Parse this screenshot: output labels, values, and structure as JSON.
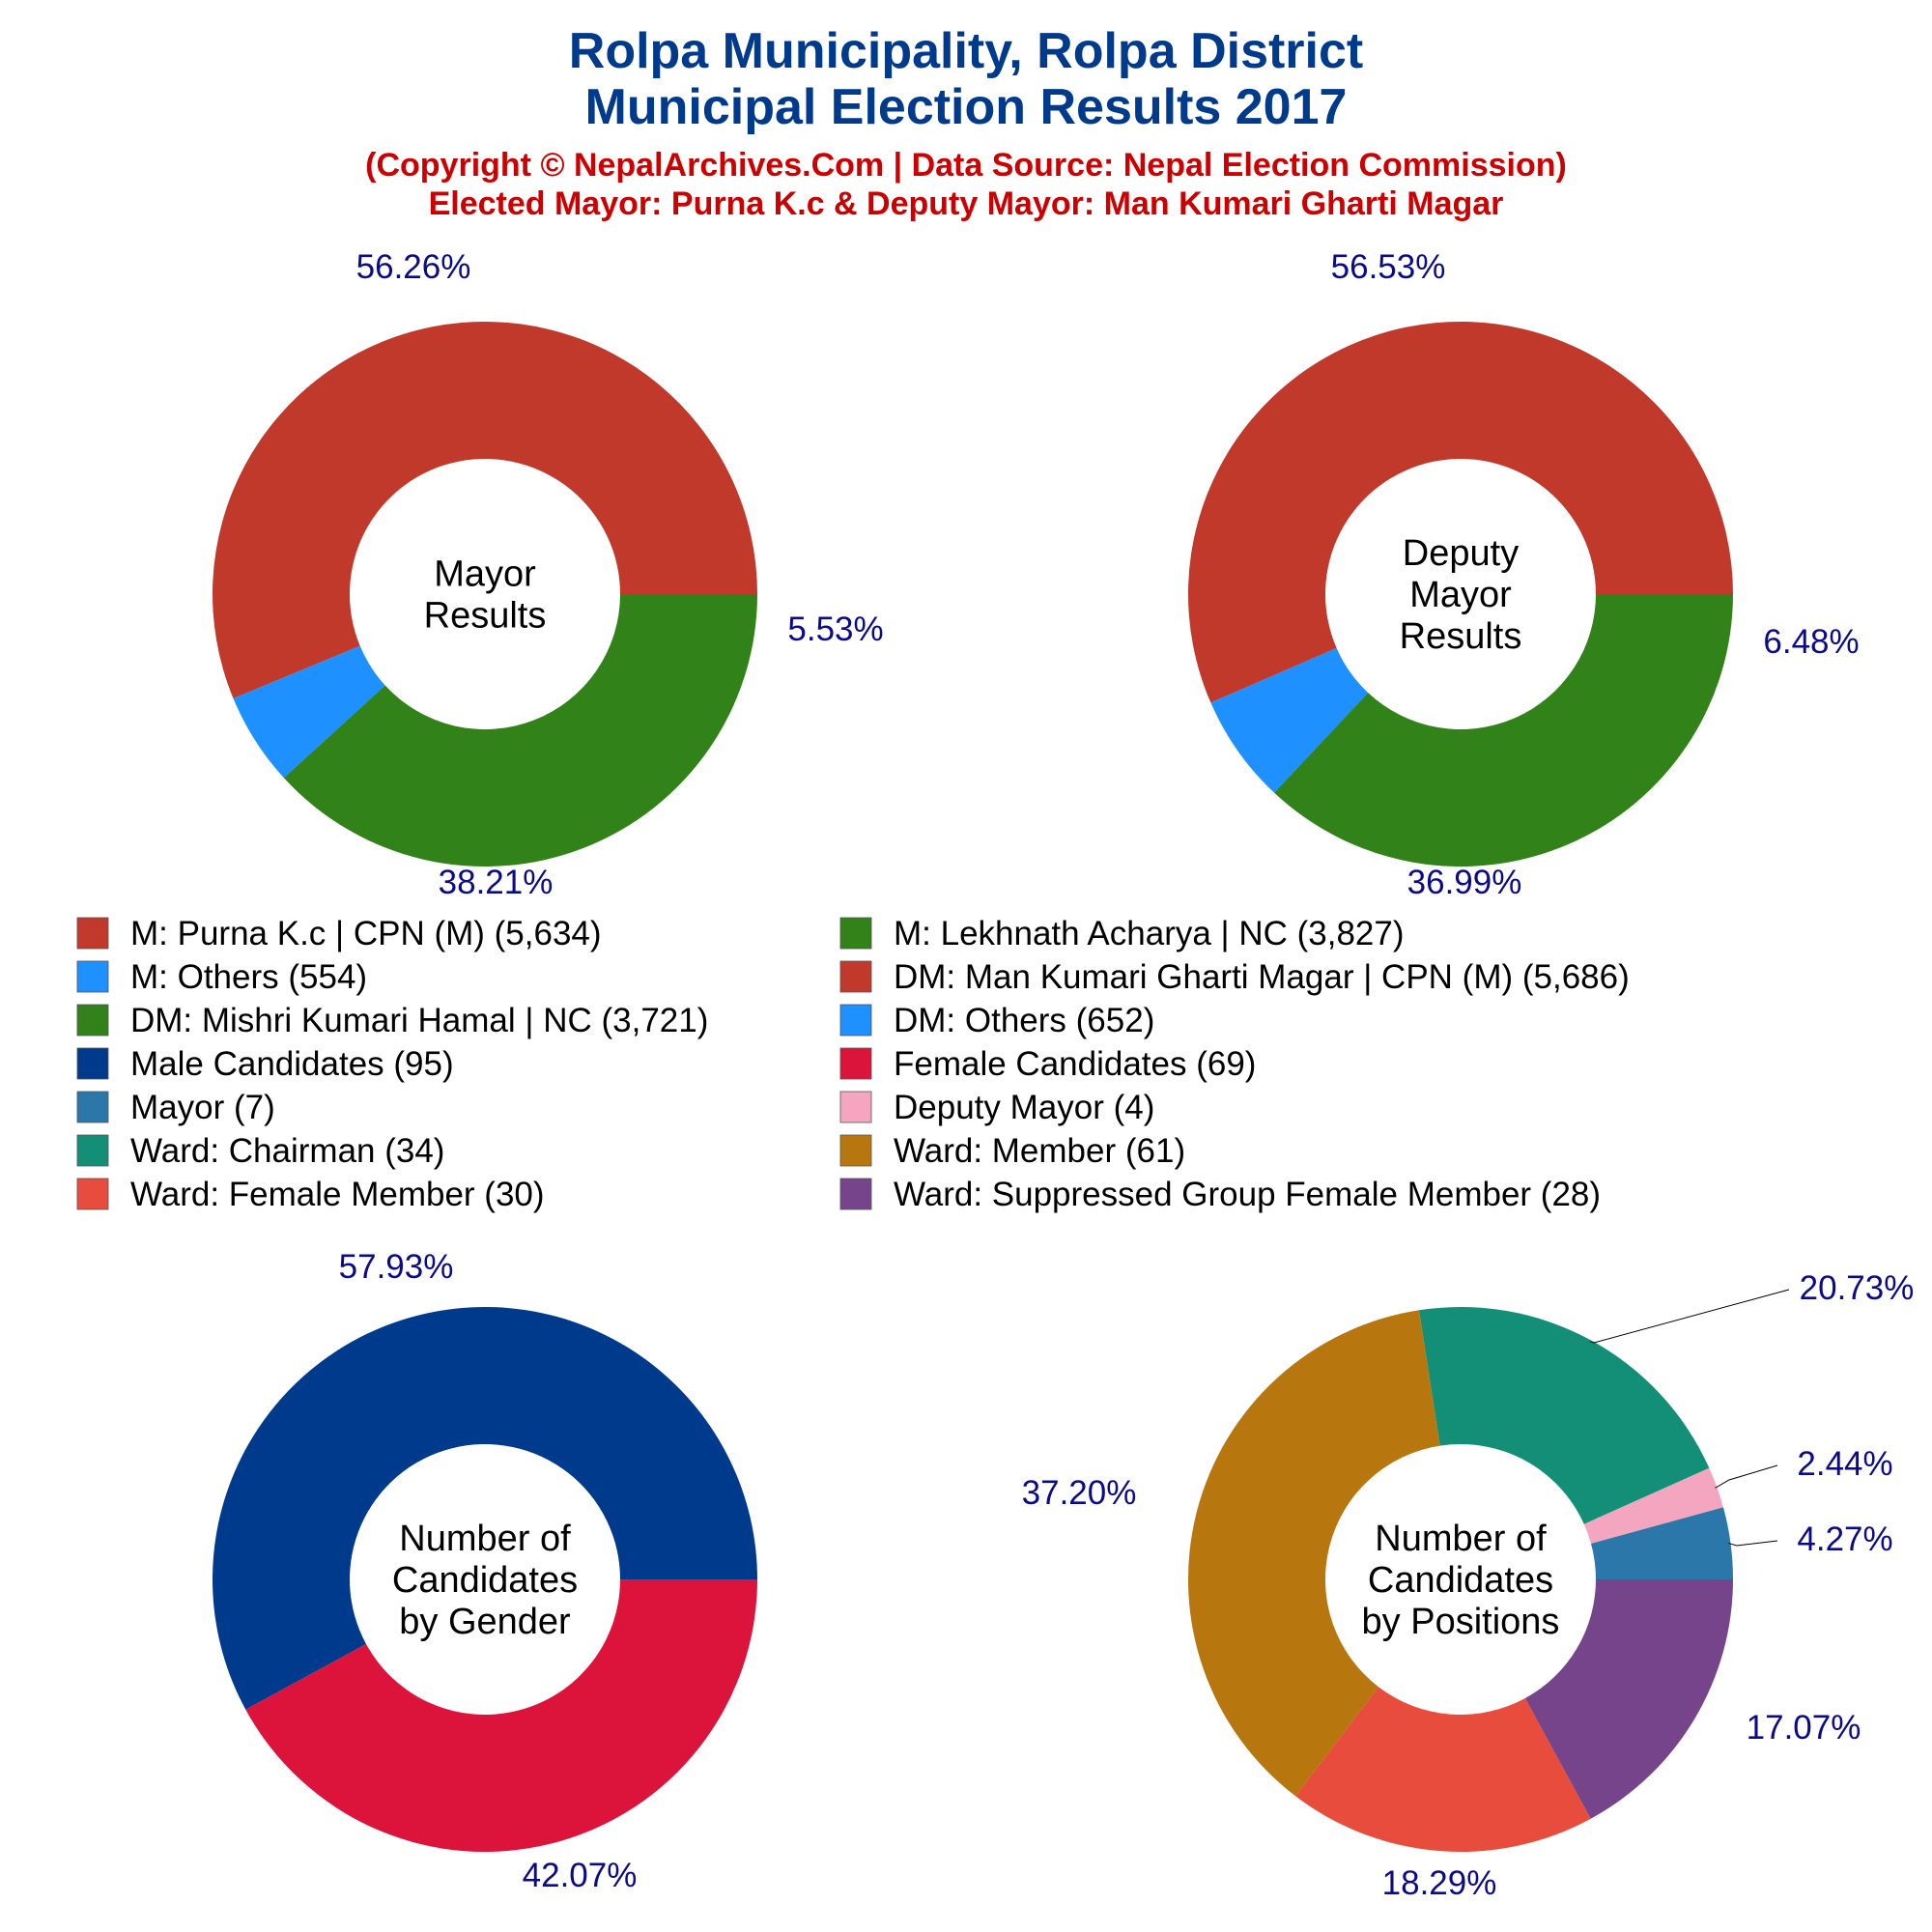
{
  "header": {
    "title_line1": "Rolpa Municipality, Rolpa District",
    "title_line2": "Municipal Election Results 2017",
    "subtitle_line1": "(Copyright © NepalArchives.Com | Data Source: Nepal Election Commission)",
    "subtitle_line2": "Elected Mayor: Purna K.c & Deputy Mayor: Man Kumari Gharti Magar"
  },
  "colors": {
    "title": "#003a8c",
    "subtitle": "#cc0000",
    "pct_label": "#0b0b8a"
  },
  "legend": {
    "layout": "two-column grid between chart rows",
    "items": [
      {
        "label": "M: Purna K.c | CPN (M) (5,634)",
        "color": "#c0392b"
      },
      {
        "label": "M: Lekhnath Acharya | NC (3,827)",
        "color": "#318219"
      },
      {
        "label": "M: Others (554)",
        "color": "#1e90ff"
      },
      {
        "label": "DM: Man Kumari Gharti Magar | CPN (M) (5,686)",
        "color": "#c0392b"
      },
      {
        "label": "DM: Mishri Kumari Hamal | NC (3,721)",
        "color": "#318219"
      },
      {
        "label": "DM: Others (652)",
        "color": "#1e90ff"
      },
      {
        "label": "Male Candidates (95)",
        "color": "#003a8c"
      },
      {
        "label": "Female Candidates (69)",
        "color": "#dc143c"
      },
      {
        "label": "Mayor (7)",
        "color": "#2c77a9"
      },
      {
        "label": "Deputy Mayor (4)",
        "color": "#f4a6c0"
      },
      {
        "label": "Ward: Chairman (34)",
        "color": "#138f78"
      },
      {
        "label": "Ward: Member (61)",
        "color": "#b8770e"
      },
      {
        "label": "Ward: Female Member (30)",
        "color": "#e74c3c"
      },
      {
        "label": "Ward: Suppressed Group Female Member (28)",
        "color": "#76448a"
      }
    ]
  },
  "chart_data": [
    {
      "type": "pie",
      "donut": true,
      "center_label": [
        "Mayor",
        "Results"
      ],
      "slices": [
        {
          "name": "M: Purna K.c | CPN (M)",
          "value": 5634,
          "label": "56.26%",
          "color": "#c0392b"
        },
        {
          "name": "M: Others",
          "value": 554,
          "label": "5.53%",
          "color": "#1e90ff"
        },
        {
          "name": "M: Lekhnath Acharya | NC",
          "value": 3827,
          "label": "38.21%",
          "color": "#318219"
        }
      ]
    },
    {
      "type": "pie",
      "donut": true,
      "center_label": [
        "Deputy",
        "Mayor",
        "Results"
      ],
      "slices": [
        {
          "name": "DM: Man Kumari Gharti Magar | CPN (M)",
          "value": 5686,
          "label": "56.53%",
          "color": "#c0392b"
        },
        {
          "name": "DM: Others",
          "value": 652,
          "label": "6.48%",
          "color": "#1e90ff"
        },
        {
          "name": "DM: Mishri Kumari Hamal | NC",
          "value": 3721,
          "label": "36.99%",
          "color": "#318219"
        }
      ]
    },
    {
      "type": "pie",
      "donut": true,
      "center_label": [
        "Number of",
        "Candidates",
        "by Gender"
      ],
      "slices": [
        {
          "name": "Male Candidates",
          "value": 95,
          "label": "57.93%",
          "color": "#003a8c"
        },
        {
          "name": "Female Candidates",
          "value": 69,
          "label": "42.07%",
          "color": "#dc143c"
        }
      ]
    },
    {
      "type": "pie",
      "donut": true,
      "center_label": [
        "Number of",
        "Candidates",
        "by Positions"
      ],
      "slices": [
        {
          "name": "Mayor",
          "value": 7,
          "label": "4.27%",
          "color": "#2c77a9"
        },
        {
          "name": "Deputy Mayor",
          "value": 4,
          "label": "2.44%",
          "color": "#f4a6c0"
        },
        {
          "name": "Ward: Chairman",
          "value": 34,
          "label": "20.73%",
          "color": "#138f78"
        },
        {
          "name": "Ward: Member",
          "value": 61,
          "label": "37.20%",
          "color": "#b8770e"
        },
        {
          "name": "Ward: Female Member",
          "value": 30,
          "label": "18.29%",
          "color": "#e74c3c"
        },
        {
          "name": "Ward: Suppressed Group Female Member",
          "value": 28,
          "label": "17.07%",
          "color": "#76448a"
        }
      ]
    }
  ]
}
